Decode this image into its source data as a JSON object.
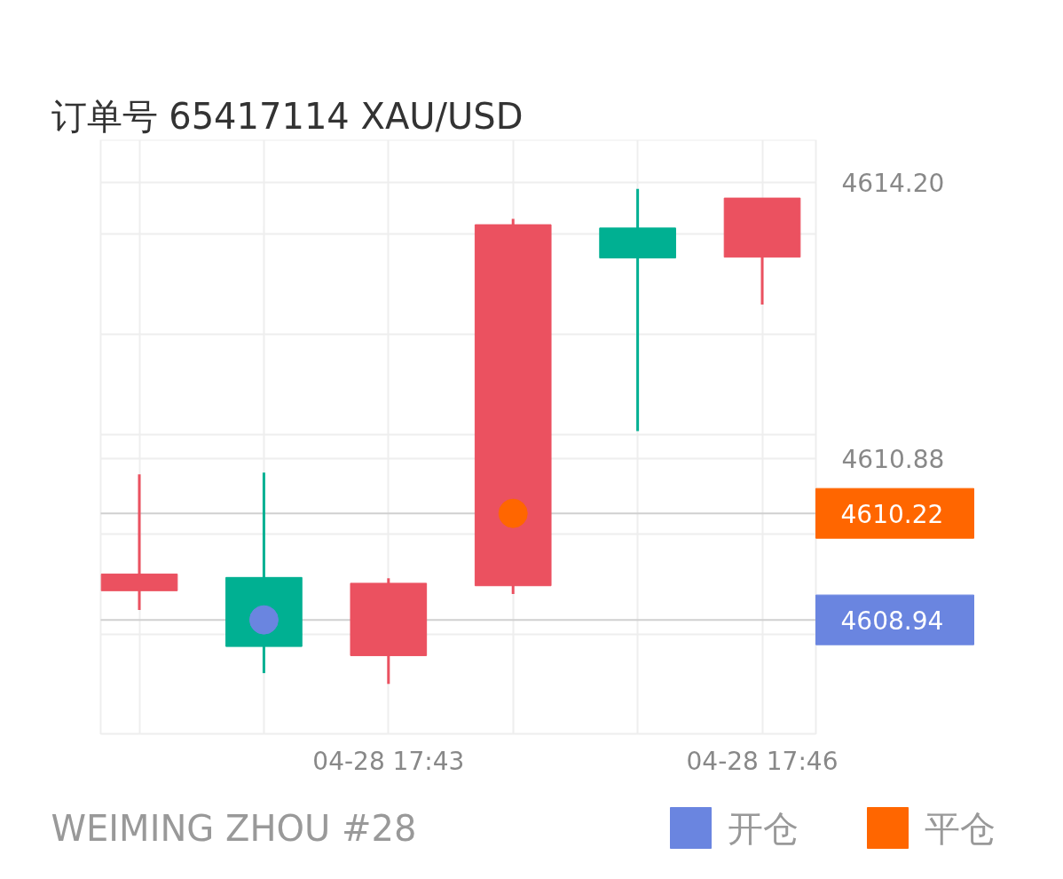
{
  "chart_data": {
    "type": "candlestick",
    "title": "订单号 65417114    XAU/USD",
    "categories": [
      null,
      null,
      "04-28 17:43",
      null,
      null,
      "04-28 17:46"
    ],
    "ohlc": [
      [
        4609.49,
        4610.69,
        4609.06,
        4609.29
      ],
      [
        4608.62,
        4610.71,
        4608.3,
        4609.45
      ],
      [
        4609.38,
        4609.44,
        4608.17,
        4608.51
      ],
      [
        4613.69,
        4613.76,
        4609.25,
        4609.35
      ],
      [
        4613.29,
        4614.12,
        4611.21,
        4613.65
      ],
      [
        4614.01,
        4614.01,
        4612.73,
        4613.3
      ]
    ],
    "colors": [
      "#eb5160",
      "#00b092",
      "#eb5160",
      "#eb5160",
      "#00b092",
      "#eb5160"
    ],
    "series": [
      {
        "type": "scatter",
        "name": "开仓",
        "color": "#6a85e0",
        "values": [
          null,
          4608.94,
          null,
          null,
          null,
          null
        ]
      },
      {
        "type": "scatter",
        "name": "平仓",
        "color": "#ff6600",
        "values": [
          null,
          null,
          null,
          4610.22,
          null,
          null
        ]
      }
    ],
    "marker": "circle",
    "ref_lines": [
      {
        "axis": "y",
        "value": 4610.22,
        "label": "4610.22",
        "color": "#d0d0d0"
      },
      {
        "axis": "y",
        "value": 4608.94,
        "label": "4608.94",
        "color": "#d0d0d0"
      }
    ],
    "ylim": [
      4607.57,
      4614.71
    ],
    "yticks": [
      {
        "value": 4608.77,
        "label": null
      },
      {
        "value": 4609.97,
        "label": null
      },
      {
        "value": 4610.88,
        "label": "4610.88"
      },
      {
        "value": 4611.17,
        "label": null
      },
      {
        "value": 4612.37,
        "label": null
      },
      {
        "value": 4613.58,
        "label": null
      },
      {
        "value": 4614.2,
        "label": "4614.20"
      }
    ],
    "grid": true,
    "legend": "bottom right",
    "annotations": [
      "WEIMING ZHOU #28"
    ]
  }
}
